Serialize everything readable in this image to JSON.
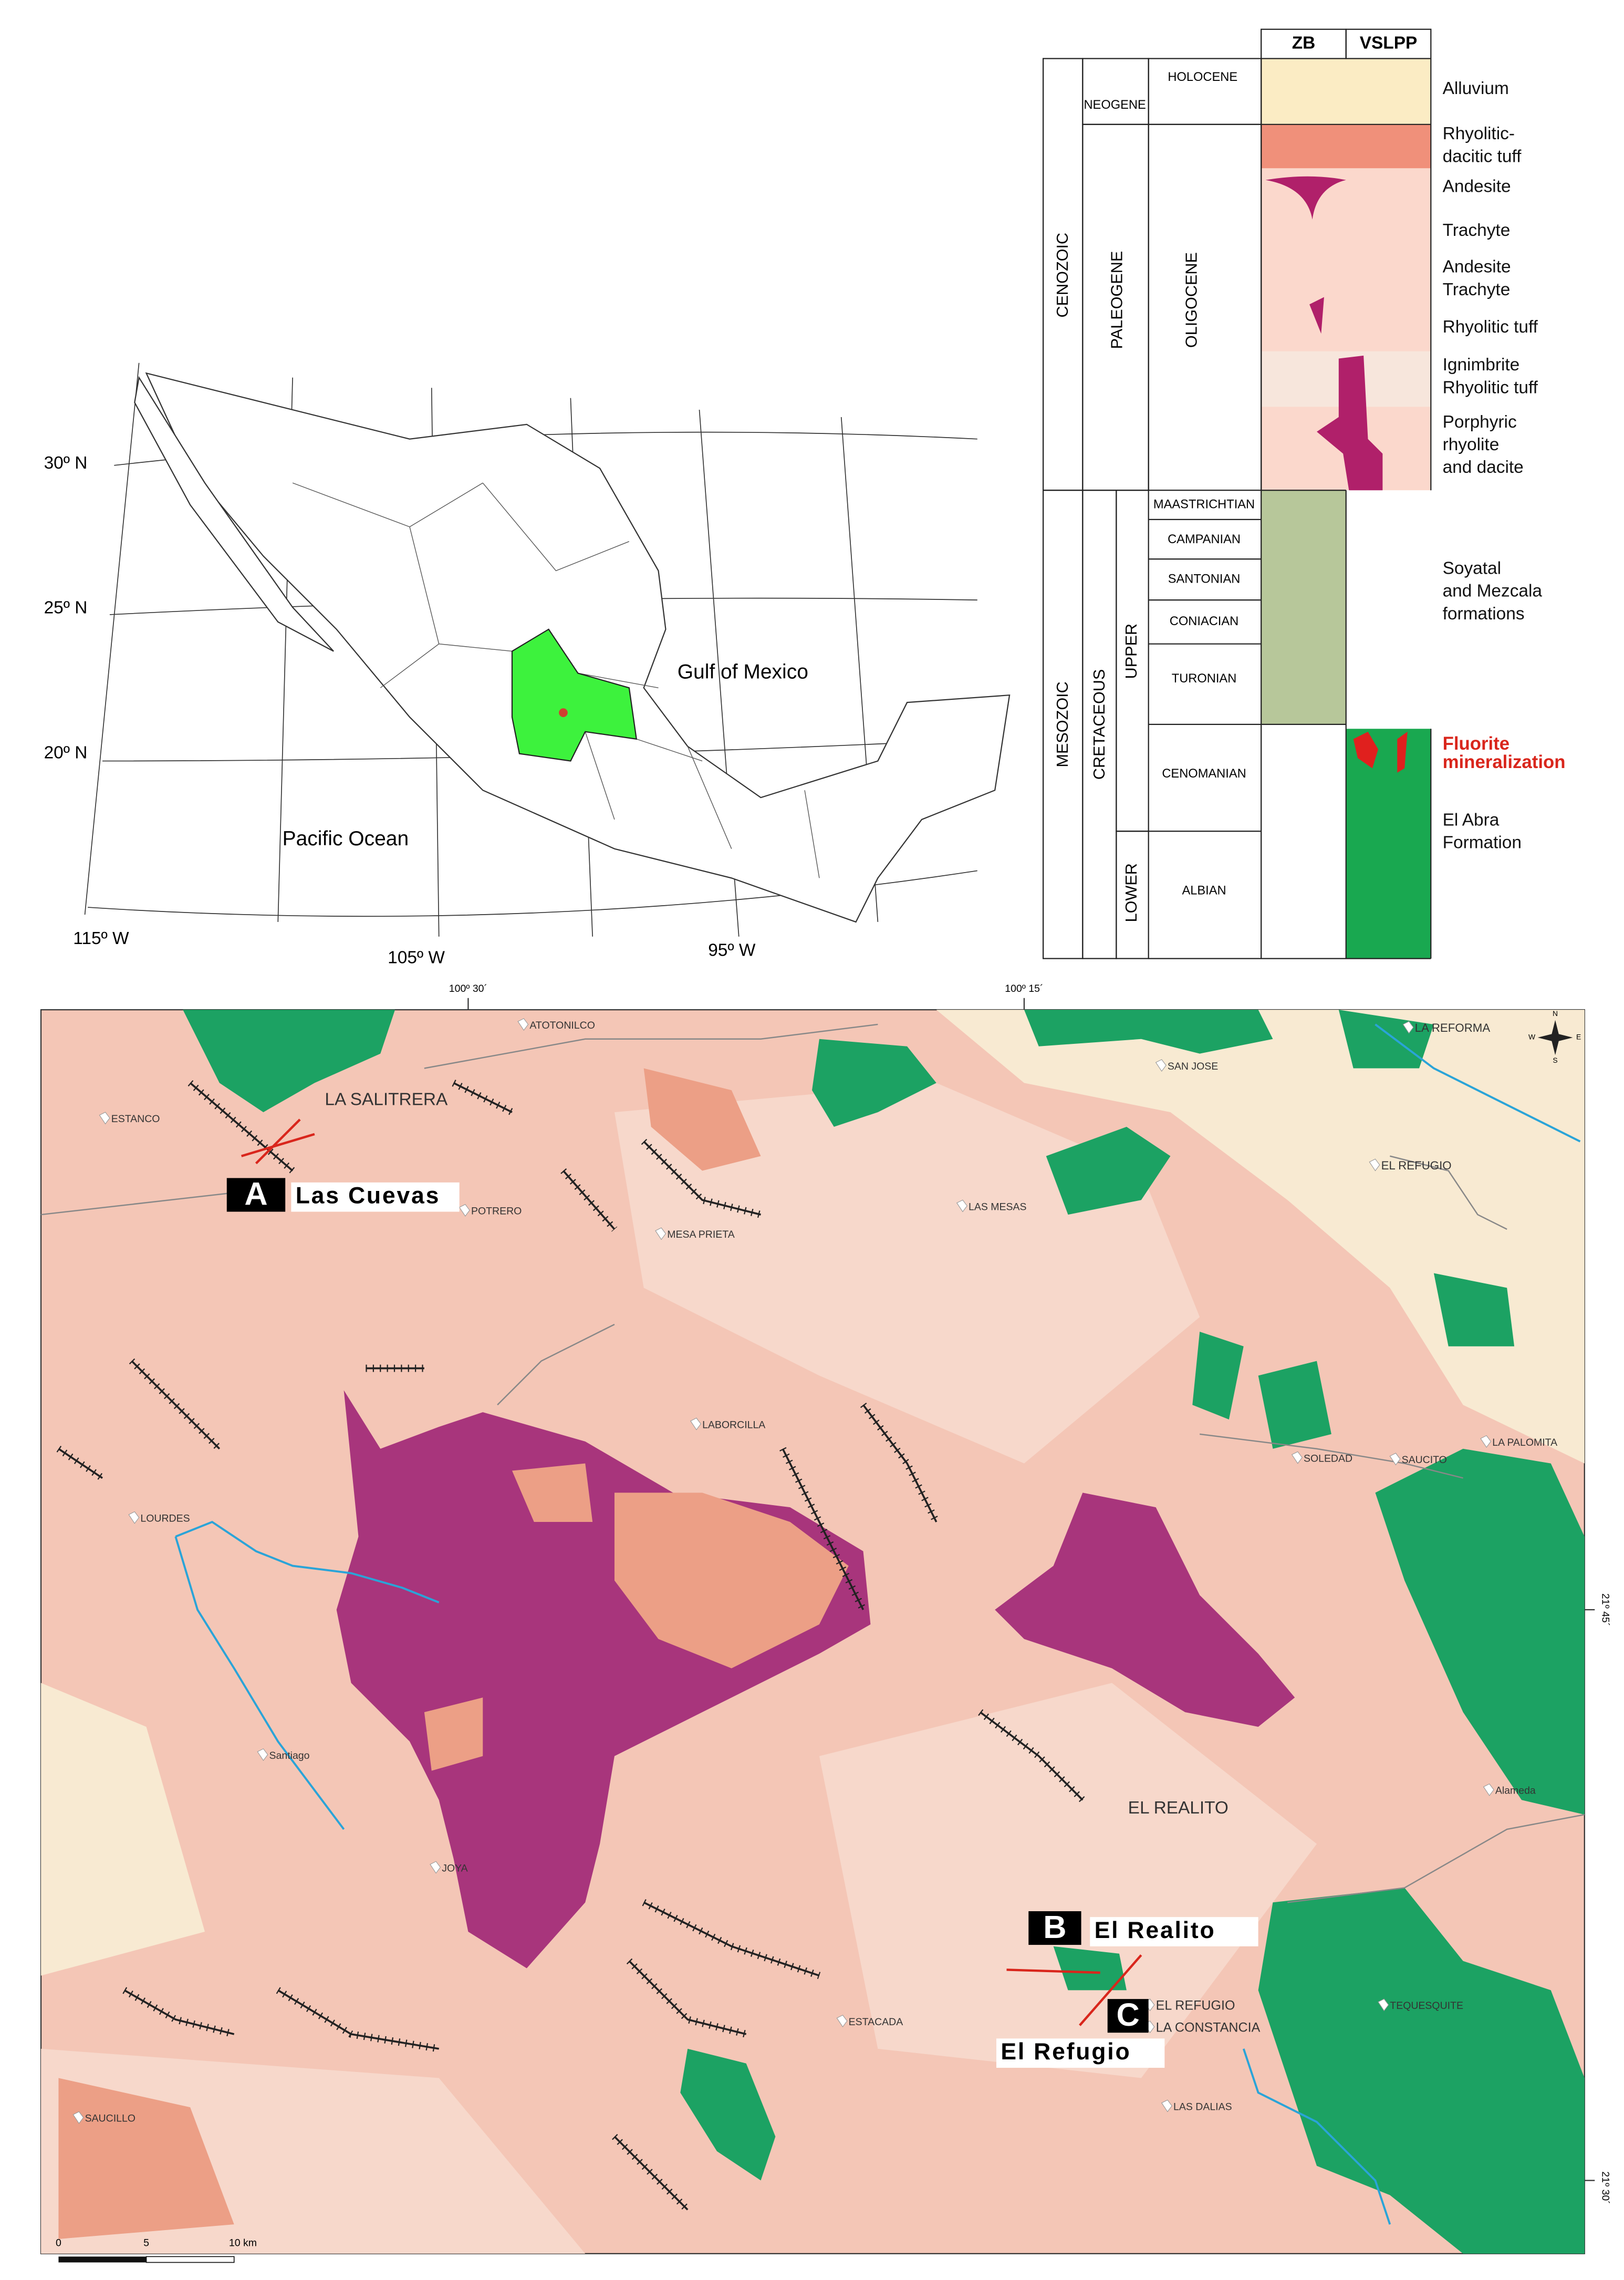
{
  "inset_map": {
    "latitudes": [
      "30º N",
      "25º N",
      "20º N"
    ],
    "longitudes": [
      "115º W",
      "105º W",
      "95º W"
    ],
    "labels": [
      "Gulf of Mexico",
      "Pacific Ocean"
    ]
  },
  "stratigraphy": {
    "columns": [
      "ZB",
      "VSLPP"
    ],
    "eras": [
      "CENOZOIC",
      "MESOZOIC"
    ],
    "periods": [
      "NEOGENE",
      "PALEOGENE",
      "CRETACEOUS"
    ],
    "epochs": [
      "HOLOCENE",
      "OLIGOCENE",
      "UPPER",
      "LOWER"
    ],
    "stages": [
      "MAASTRICHTIAN",
      "CAMPANIAN",
      "SANTONIAN",
      "CONIACIAN",
      "TURONIAN",
      "CENOMANIAN",
      "ALBIAN"
    ],
    "units": [
      [
        "Alluvium"
      ],
      [
        "Rhyolitic-",
        "dacitic tuff"
      ],
      [
        "Andesite"
      ],
      [
        "Trachyte"
      ],
      [
        "Andesite",
        "Trachyte"
      ],
      [
        "Rhyolitic tuff"
      ],
      [
        "Ignimbrite",
        "Rhyolitic tuff"
      ],
      [
        "Porphyric",
        "rhyolite",
        "and dacite"
      ],
      [
        "Soyatal",
        "and Mezcala",
        "formations"
      ],
      [
        "Fluorite",
        "mineralization"
      ],
      [
        "El Abra",
        "Formation"
      ]
    ]
  },
  "geologic_map": {
    "coordinates": [
      "100º 30´",
      "100º 15´",
      "21º 45´",
      "21º 30´"
    ],
    "sites": [
      {
        "letter": "A",
        "name": "Las Cuevas"
      },
      {
        "letter": "B",
        "name": "El Realito"
      },
      {
        "letter": "C",
        "name": "El Refugio"
      }
    ],
    "places": [
      "LA SALITRERA",
      "ESTANCO",
      "POTRERO",
      "MESA PRIETA",
      "ATOTONILCO",
      "SAN JOSE",
      "LAS MESAS",
      "LA REFORMA",
      "EL REFUGIO",
      "LABORCILLA",
      "LOURDES",
      "SOLEDAD",
      "SAUCITO",
      "LA PALOMITA",
      "Santiago",
      "JOYA",
      "Alameda",
      "EL REALITO",
      "EL REFUGIO",
      "LA CONSTANCIA",
      "TEQUESQUITE",
      "ESTACADA",
      "LAS DALIAS",
      "SAUCILLO"
    ],
    "compass": [
      "N",
      "E",
      "S",
      "W"
    ],
    "scale": [
      "0",
      "5",
      "10 km"
    ]
  }
}
